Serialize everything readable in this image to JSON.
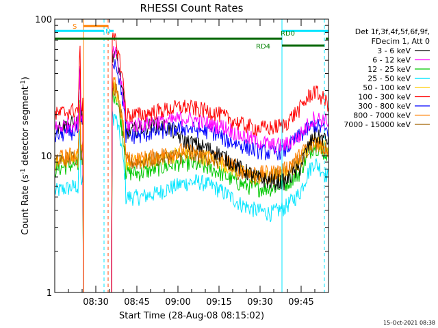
{
  "chart_data": {
    "type": "line",
    "title": "RHESSI Count Rates",
    "xlabel": "Start Time (28-Aug-08 08:15:02)",
    "ylabel": "Count Rate (s⁻¹ detector segment⁻¹)",
    "ylabel_main": "Count Rate (s",
    "ylabel_sup1": "-1",
    "ylabel_mid": " detector segment",
    "ylabel_sup2": "-1",
    "ylabel_end": ")",
    "yscale": "log",
    "ylim": [
      1,
      100
    ],
    "xlim_minutes": [
      0,
      100
    ],
    "x_tick_labels": [
      "08:30",
      "08:45",
      "09:00",
      "09:15",
      "09:30",
      "09:45"
    ],
    "x_tick_minutes": [
      15,
      30,
      45,
      60,
      75,
      90
    ],
    "y_tick_labels": [
      "1",
      "10",
      "100"
    ],
    "y_tick_values": [
      1,
      10,
      100
    ],
    "legend_header": [
      "Det 1f,3f,4f,5f,6f,9f,",
      "FDecim 1, Att 0"
    ],
    "legend_placement": "top-right, outside",
    "footer_date": "15-Oct-2021 08:38",
    "grid": false,
    "series": [
      {
        "name": "3 - 6 keV",
        "color": "#000000",
        "quiet_start": 16,
        "levels": [
          15,
          16,
          17,
          16,
          13,
          12,
          11,
          9.5,
          8,
          7,
          6.5,
          6.5,
          8,
          14,
          13
        ]
      },
      {
        "name": "6 - 12 keV",
        "color": "#ff00ff",
        "quiet_start": 16,
        "levels": [
          17,
          17,
          18,
          18,
          19,
          18,
          17,
          16,
          14,
          13,
          12,
          12,
          14,
          19,
          18
        ]
      },
      {
        "name": "12 - 25 keV",
        "color": "#00c800",
        "quiet_start": 8,
        "levels": [
          7.5,
          7.5,
          8,
          8.5,
          9,
          8.5,
          8,
          7,
          6.2,
          5.8,
          5.8,
          6.2,
          7.5,
          12,
          10
        ]
      },
      {
        "name": "25 - 50 keV",
        "color": "#00e5ff",
        "quiet_start": 5.5,
        "levels": [
          5,
          5,
          5.3,
          5.8,
          6.3,
          6.5,
          6,
          5.2,
          4.4,
          4,
          3.8,
          4.2,
          5.3,
          9,
          7
        ]
      },
      {
        "name": "50 - 100 keV",
        "color": "#ffcc00",
        "quiet_start": 9,
        "levels": [
          9,
          9,
          9.5,
          10,
          10.5,
          10,
          9.5,
          8.5,
          7.5,
          7,
          7,
          7.5,
          9,
          13,
          11
        ]
      },
      {
        "name": "100 - 300 keV",
        "color": "#ff0000",
        "quiet_start": 20,
        "levels": [
          20,
          20,
          21,
          22,
          23,
          22,
          21,
          19,
          17,
          16,
          16,
          17,
          22,
          30,
          24
        ]
      },
      {
        "name": "300 - 800 keV",
        "color": "#0000ff",
        "quiet_start": 14,
        "levels": [
          14,
          14,
          15,
          15.5,
          16,
          15.5,
          15,
          13,
          12,
          11,
          10.5,
          11,
          14,
          17,
          15
        ]
      },
      {
        "name": "800 - 7000 keV",
        "color": "#ff8000",
        "quiet_start": 9.5,
        "levels": [
          9.5,
          9.5,
          10,
          10.5,
          11,
          10.5,
          10,
          9,
          8,
          7.5,
          7.5,
          8,
          10,
          13,
          11
        ]
      },
      {
        "name": "7000 - 15000 keV",
        "color": "#a06000",
        "quiet_start": 9,
        "levels": [
          9,
          9,
          9.5,
          10,
          10,
          10,
          9.5,
          8.5,
          7.5,
          7,
          7,
          7.5,
          9.5,
          12.5,
          10.5
        ]
      }
    ],
    "bars": [
      {
        "label": "S",
        "color": "#ff8000",
        "x0": 10.5,
        "x1": 19.5,
        "y": 89
      },
      {
        "label": "N",
        "color": "#00e5ff",
        "x0": 0,
        "x1": 18,
        "y": 82
      },
      {
        "label": "",
        "color": "#00e5ff",
        "x0": 20,
        "x1": 21.5,
        "y": 82
      },
      {
        "label": "",
        "color": "#006400",
        "x0": 0,
        "x1": 83,
        "y": 72
      },
      {
        "label": "RD0",
        "color": "#00e5ff",
        "x0": 83,
        "x1": 100,
        "y": 82
      },
      {
        "label": "RD4",
        "color": "#006400",
        "x0": 83,
        "x1": 98.5,
        "y": 64
      },
      {
        "label": "",
        "color": "#006400",
        "x0": 99,
        "x1": 100,
        "y": 72
      }
    ],
    "vlines": [
      {
        "x": 10.5,
        "color": "#ff8000",
        "style": "solid"
      },
      {
        "x": 18,
        "color": "#00e5ff",
        "style": "dashed"
      },
      {
        "x": 19.5,
        "color": "#ff4000",
        "style": "dashed"
      },
      {
        "x": 83,
        "color": "#00e5ff",
        "style": "solid"
      },
      {
        "x": 98.5,
        "color": "#00e5ff",
        "style": "dashed"
      }
    ]
  }
}
